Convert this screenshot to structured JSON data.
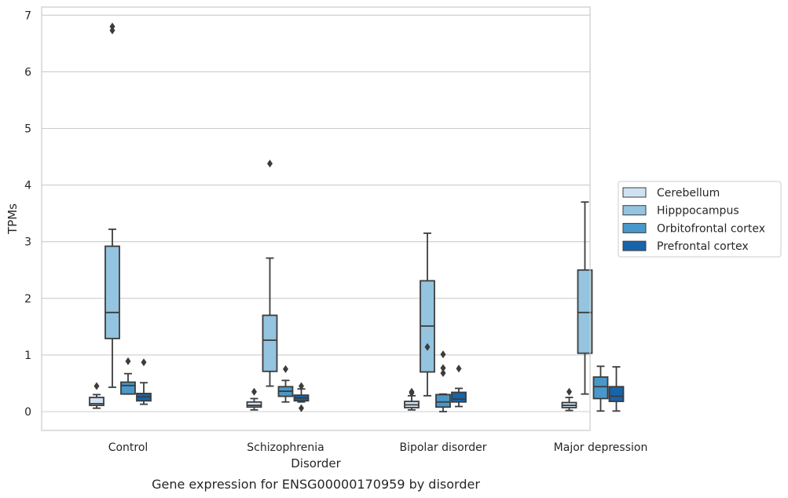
{
  "chart_data": {
    "type": "box",
    "caption": "Gene expression for ENSG00000170959 by disorder",
    "xlabel": "Disorder",
    "ylabel": "TPMs",
    "ylim": [
      -0.33,
      7.15
    ],
    "yticks": [
      0,
      1,
      2,
      3,
      4,
      5,
      6,
      7
    ],
    "grid": "horizontal",
    "legend_position": "right",
    "categories": [
      "Control",
      "Schizophrenia",
      "Bipolar disorder",
      "Major depression"
    ],
    "colors": {
      "Cerebellum": "#d0e1f2",
      "Hipppocampus": "#94c4df",
      "Orbitofrontal cortex": "#4a98c9",
      "Prefrontal cortex": "#1764ab"
    },
    "series": [
      {
        "name": "Cerebellum",
        "boxes": [
          {
            "whisker_low": 0.06,
            "q1": 0.11,
            "median": 0.14,
            "q3": 0.25,
            "whisker_high": 0.3,
            "outliers": [
              0.45
            ]
          },
          {
            "whisker_low": 0.03,
            "q1": 0.08,
            "median": 0.11,
            "q3": 0.17,
            "whisker_high": 0.23,
            "outliers": [
              0.35
            ]
          },
          {
            "whisker_low": 0.03,
            "q1": 0.07,
            "median": 0.12,
            "q3": 0.18,
            "whisker_high": 0.28,
            "outliers": [
              0.33,
              0.35
            ]
          },
          {
            "whisker_low": 0.02,
            "q1": 0.07,
            "median": 0.11,
            "q3": 0.16,
            "whisker_high": 0.25,
            "outliers": [
              0.35
            ]
          }
        ]
      },
      {
        "name": "Hipppocampus",
        "boxes": [
          {
            "whisker_low": 0.43,
            "q1": 1.29,
            "median": 1.75,
            "q3": 2.92,
            "whisker_high": 3.22,
            "outliers": [
              6.73,
              6.8
            ]
          },
          {
            "whisker_low": 0.45,
            "q1": 0.71,
            "median": 1.26,
            "q3": 1.7,
            "whisker_high": 2.71,
            "outliers": [
              4.38
            ]
          },
          {
            "whisker_low": 0.28,
            "q1": 0.7,
            "median": 1.51,
            "q3": 2.31,
            "whisker_high": 3.15,
            "outliers": [
              1.14
            ]
          },
          {
            "whisker_low": 0.31,
            "q1": 1.03,
            "median": 1.75,
            "q3": 2.5,
            "whisker_high": 3.7,
            "outliers": []
          }
        ]
      },
      {
        "name": "Orbitofrontal cortex",
        "boxes": [
          {
            "whisker_low": 0.31,
            "q1": 0.31,
            "median": 0.46,
            "q3": 0.52,
            "whisker_high": 0.67,
            "outliers": [
              0.89
            ]
          },
          {
            "whisker_low": 0.17,
            "q1": 0.27,
            "median": 0.36,
            "q3": 0.44,
            "whisker_high": 0.55,
            "outliers": [
              0.75
            ]
          },
          {
            "whisker_low": 0.0,
            "q1": 0.08,
            "median": 0.17,
            "q3": 0.3,
            "whisker_high": 0.31,
            "outliers": [
              0.68,
              0.77,
              1.01
            ]
          },
          {
            "whisker_low": 0.01,
            "q1": 0.23,
            "median": 0.44,
            "q3": 0.61,
            "whisker_high": 0.8,
            "outliers": []
          }
        ]
      },
      {
        "name": "Prefrontal cortex",
        "boxes": [
          {
            "whisker_low": 0.13,
            "q1": 0.19,
            "median": 0.26,
            "q3": 0.32,
            "whisker_high": 0.51,
            "outliers": [
              0.87
            ]
          },
          {
            "whisker_low": 0.17,
            "q1": 0.19,
            "median": 0.24,
            "q3": 0.29,
            "whisker_high": 0.4,
            "outliers": [
              0.06,
              0.45
            ]
          },
          {
            "whisker_low": 0.09,
            "q1": 0.17,
            "median": 0.22,
            "q3": 0.34,
            "whisker_high": 0.41,
            "outliers": [
              0.76
            ]
          },
          {
            "whisker_low": 0.01,
            "q1": 0.18,
            "median": 0.27,
            "q3": 0.44,
            "whisker_high": 0.79,
            "outliers": []
          }
        ]
      }
    ]
  }
}
